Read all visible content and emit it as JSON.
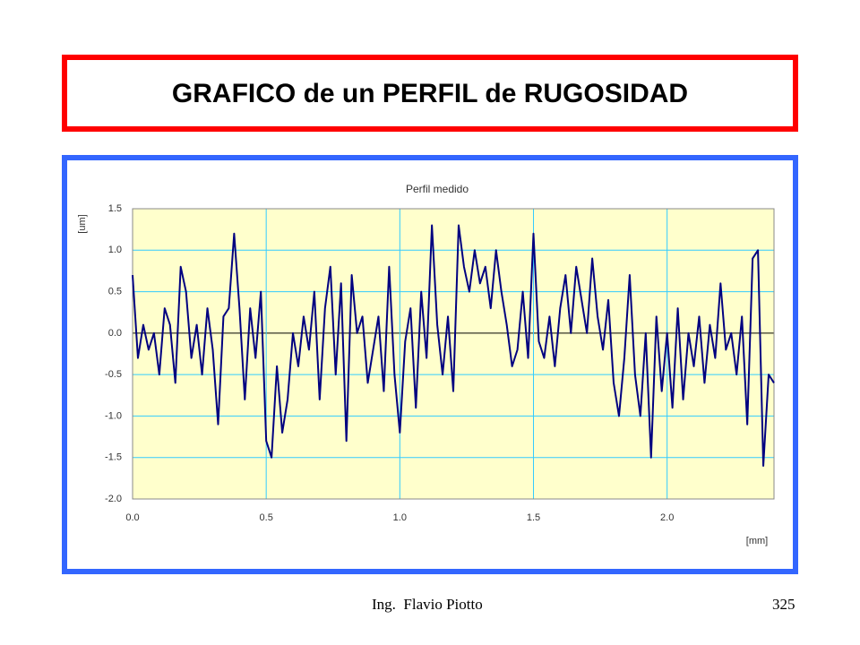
{
  "slide_title": "GRAFICO de un PERFIL de RUGOSIDAD",
  "chart_data": {
    "type": "line",
    "title": "Perfil medido",
    "y_label": "[um]",
    "x_label": "[mm]",
    "color": "#000080",
    "grid": true,
    "xlim": [
      0,
      2.4
    ],
    "ylim": [
      -2.0,
      1.5
    ],
    "xticks": [
      {
        "value": 0,
        "label": "0.0"
      },
      0.5,
      {
        "value": 1,
        "label": "1.0"
      },
      1.5,
      {
        "value": 2,
        "label": "2.0"
      }
    ],
    "yticks": [
      1.5,
      {
        "value": 1,
        "label": "1.0"
      },
      0.5,
      {
        "value": 0,
        "label": "0.0"
      },
      -0.5,
      {
        "value": -1,
        "label": "-1.0"
      },
      -1.5,
      {
        "value": -2,
        "label": "-2.0"
      }
    ],
    "x": [
      0,
      0.02,
      0.04,
      0.06,
      0.08,
      0.1,
      0.12,
      0.14,
      0.16,
      0.18,
      0.2,
      0.22,
      0.24,
      0.26,
      0.28,
      0.3,
      0.32,
      0.34,
      0.36,
      0.38,
      0.4,
      0.42,
      0.44,
      0.46,
      0.48,
      0.5,
      0.52,
      0.54,
      0.56,
      0.58,
      0.6,
      0.62,
      0.64,
      0.66,
      0.68,
      0.7,
      0.72,
      0.74,
      0.76,
      0.78,
      0.8,
      0.82,
      0.84,
      0.86,
      0.88,
      0.9,
      0.92,
      0.94,
      0.96,
      0.98,
      1.0,
      1.02,
      1.04,
      1.06,
      1.08,
      1.1,
      1.12,
      1.14,
      1.16,
      1.18,
      1.2,
      1.22,
      1.24,
      1.26,
      1.28,
      1.3,
      1.32,
      1.34,
      1.36,
      1.38,
      1.4,
      1.42,
      1.44,
      1.46,
      1.48,
      1.5,
      1.52,
      1.54,
      1.56,
      1.58,
      1.6,
      1.62,
      1.64,
      1.66,
      1.68,
      1.7,
      1.72,
      1.74,
      1.76,
      1.78,
      1.8,
      1.82,
      1.84,
      1.86,
      1.88,
      1.9,
      1.92,
      1.94,
      1.96,
      1.98,
      2.0,
      2.02,
      2.04,
      2.06,
      2.08,
      2.1,
      2.12,
      2.14,
      2.16,
      2.18,
      2.2,
      2.22,
      2.24,
      2.26,
      2.28,
      2.3,
      2.32,
      2.34,
      2.36,
      2.38,
      2.4
    ],
    "values": [
      0.7,
      -0.3,
      0.1,
      -0.2,
      0.0,
      -0.5,
      0.3,
      0.1,
      -0.6,
      0.8,
      0.5,
      -0.3,
      0.1,
      -0.5,
      0.3,
      -0.2,
      -1.1,
      0.2,
      0.3,
      1.2,
      0.3,
      -0.8,
      0.3,
      -0.3,
      0.5,
      -1.3,
      -1.5,
      -0.4,
      -1.2,
      -0.8,
      0.0,
      -0.4,
      0.2,
      -0.2,
      0.5,
      -0.8,
      0.3,
      0.8,
      -0.5,
      0.6,
      -1.3,
      0.7,
      0.0,
      0.2,
      -0.6,
      -0.2,
      0.2,
      -0.7,
      0.8,
      -0.5,
      -1.2,
      -0.1,
      0.3,
      -0.9,
      0.5,
      -0.3,
      1.3,
      0.1,
      -0.5,
      0.2,
      -0.7,
      1.3,
      0.8,
      0.5,
      1.0,
      0.6,
      0.8,
      0.3,
      1.0,
      0.5,
      0.1,
      -0.4,
      -0.2,
      0.5,
      -0.3,
      1.2,
      -0.1,
      -0.3,
      0.2,
      -0.4,
      0.3,
      0.7,
      0.0,
      0.8,
      0.4,
      0.0,
      0.9,
      0.2,
      -0.2,
      0.4,
      -0.6,
      -1.0,
      -0.3,
      0.7,
      -0.5,
      -1.0,
      0.0,
      -1.5,
      0.2,
      -0.7,
      0.0,
      -0.9,
      0.3,
      -0.8,
      0.0,
      -0.4,
      0.2,
      -0.6,
      0.1,
      -0.3,
      0.6,
      -0.2,
      0.0,
      -0.5,
      0.2,
      -1.1,
      0.9,
      1.0,
      -1.6,
      -0.5,
      -0.6
    ]
  },
  "footer": {
    "author": "Ing.  Flavio Piotto",
    "page": "325"
  }
}
